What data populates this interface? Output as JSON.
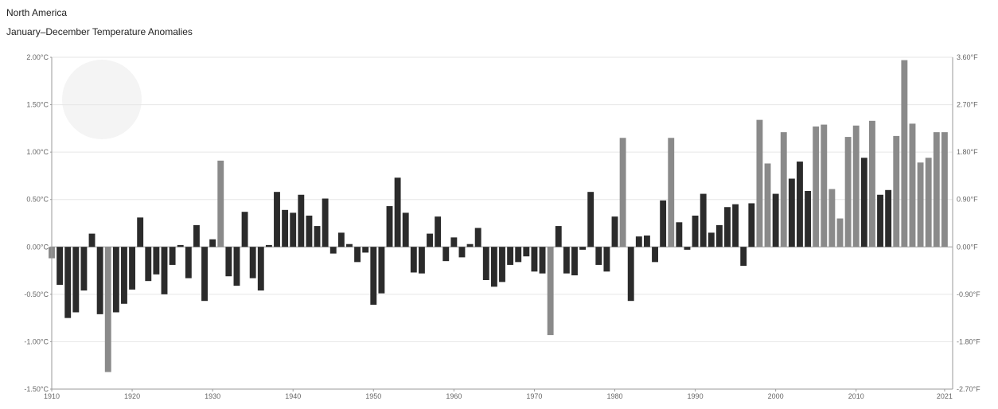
{
  "header": {
    "title": "North America",
    "subtitle": "January–December Temperature Anomalies"
  },
  "colors": {
    "negative_bar": "#2b2b2b",
    "positive_bar": "#2b2b2b",
    "highlight_bar": "#8a8a8a",
    "grid": "#e6e6e6",
    "axis": "#9a9a9a"
  },
  "chart_data": {
    "type": "bar",
    "title": "North America",
    "subtitle": "January–December Temperature Anomalies",
    "x_start": 1910,
    "x_end": 2021,
    "xlabel": "",
    "ylabel": "",
    "ylim": [
      -1.5,
      2.0
    ],
    "y_ticks_left": [
      "2.00°C",
      "1.50°C",
      "1.00°C",
      "0.50°C",
      "0.00°C",
      "-0.50°C",
      "-1.00°C",
      "-1.50°C"
    ],
    "y_tick_values": [
      2.0,
      1.5,
      1.0,
      0.5,
      0.0,
      -0.5,
      -1.0,
      -1.5
    ],
    "y_ticks_right": [
      "3.60°F",
      "2.70°F",
      "1.80°F",
      "0.90°F",
      "0.00°F",
      "-0.90°F",
      "-1.80°F",
      "-2.70°F"
    ],
    "x_ticks": [
      "1910",
      "1920",
      "1930",
      "1940",
      "1950",
      "1960",
      "1970",
      "1980",
      "1990",
      "2000",
      "2010",
      "2021"
    ],
    "x_tick_values": [
      1910,
      1920,
      1930,
      1940,
      1950,
      1960,
      1970,
      1980,
      1990,
      2000,
      2010,
      2021
    ],
    "grid": true,
    "years": [
      1910,
      1911,
      1912,
      1913,
      1914,
      1915,
      1916,
      1917,
      1918,
      1919,
      1920,
      1921,
      1922,
      1923,
      1924,
      1925,
      1926,
      1927,
      1928,
      1929,
      1930,
      1931,
      1932,
      1933,
      1934,
      1935,
      1936,
      1937,
      1938,
      1939,
      1940,
      1941,
      1942,
      1943,
      1944,
      1945,
      1946,
      1947,
      1948,
      1949,
      1950,
      1951,
      1952,
      1953,
      1954,
      1955,
      1956,
      1957,
      1958,
      1959,
      1960,
      1961,
      1962,
      1963,
      1964,
      1965,
      1966,
      1967,
      1968,
      1969,
      1970,
      1971,
      1972,
      1973,
      1974,
      1975,
      1976,
      1977,
      1978,
      1979,
      1980,
      1981,
      1982,
      1983,
      1984,
      1985,
      1986,
      1987,
      1988,
      1989,
      1990,
      1991,
      1992,
      1993,
      1994,
      1995,
      1996,
      1997,
      1998,
      1999,
      2000,
      2001,
      2002,
      2003,
      2004,
      2005,
      2006,
      2007,
      2008,
      2009,
      2010,
      2011,
      2012,
      2013,
      2014,
      2015,
      2016,
      2017,
      2018,
      2019,
      2020,
      2021
    ],
    "values": [
      -0.12,
      -0.4,
      -0.75,
      -0.69,
      -0.46,
      0.14,
      -0.71,
      -1.32,
      -0.69,
      -0.6,
      -0.45,
      0.31,
      -0.36,
      -0.29,
      -0.5,
      -0.19,
      0.02,
      -0.33,
      0.23,
      -0.57,
      0.08,
      0.91,
      -0.31,
      -0.41,
      0.37,
      -0.33,
      -0.46,
      0.02,
      0.58,
      0.39,
      0.36,
      0.55,
      0.33,
      0.22,
      0.51,
      -0.07,
      0.15,
      0.03,
      -0.16,
      -0.06,
      -0.61,
      -0.49,
      0.43,
      0.73,
      0.36,
      -0.27,
      -0.28,
      0.14,
      0.32,
      -0.15,
      0.1,
      -0.11,
      0.03,
      0.2,
      -0.35,
      -0.42,
      -0.37,
      -0.19,
      -0.16,
      -0.1,
      -0.26,
      -0.28,
      -0.93,
      0.22,
      -0.28,
      -0.3,
      -0.03,
      0.58,
      -0.19,
      -0.26,
      0.32,
      1.15,
      -0.57,
      0.11,
      0.12,
      -0.16,
      0.49,
      1.15,
      0.26,
      -0.03,
      0.33,
      0.56,
      0.15,
      0.23,
      0.42,
      0.45,
      -0.2,
      0.46,
      1.34,
      0.88,
      0.56,
      1.21,
      0.72,
      0.9,
      0.59,
      1.27,
      1.29,
      0.61,
      0.3,
      1.16,
      1.28,
      0.94,
      1.33,
      0.55,
      0.6,
      1.17,
      1.97,
      1.3,
      0.89,
      0.94,
      1.21,
      1.21
    ],
    "highlight_years": [
      1910,
      1917,
      1931,
      1972,
      1981,
      1987,
      1998,
      1999,
      2001,
      2005,
      2006,
      2007,
      2008,
      2009,
      2010,
      2012,
      2015,
      2016,
      2017,
      2018,
      2019,
      2020,
      2021
    ]
  }
}
